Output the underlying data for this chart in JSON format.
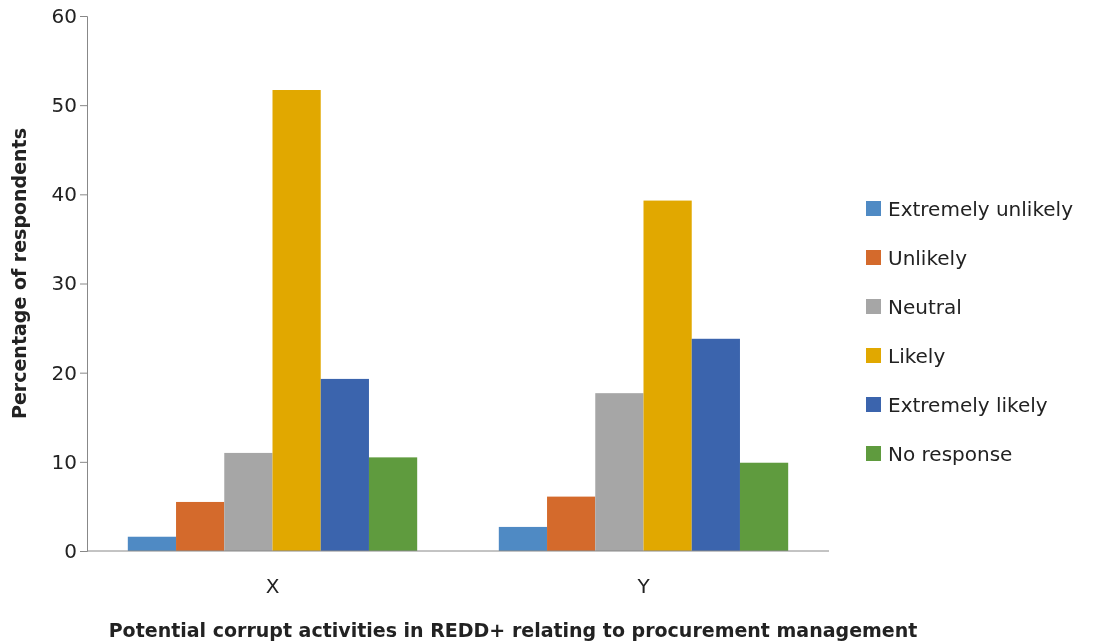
{
  "chart_data": {
    "type": "bar",
    "xlabel": "Potential corrupt activities in REDD+ relating to procurement management",
    "ylabel": "Percentage of respondents",
    "categories": [
      "X",
      "Y"
    ],
    "series": [
      {
        "name": "Extremely unlikely",
        "color": "#4f8ac4",
        "values": [
          1.6,
          2.7
        ]
      },
      {
        "name": "Unlikely",
        "color": "#d46a2c",
        "values": [
          5.5,
          6.1
        ]
      },
      {
        "name": "Neutral",
        "color": "#a6a6a6",
        "values": [
          11.0,
          17.7
        ]
      },
      {
        "name": "Likely",
        "color": "#e1a800",
        "values": [
          51.7,
          39.3
        ]
      },
      {
        "name": "Extremely likely",
        "color": "#3b64ad",
        "values": [
          19.3,
          23.8
        ]
      },
      {
        "name": "No response",
        "color": "#5f9b3e",
        "values": [
          10.5,
          9.9
        ]
      }
    ],
    "ylim": [
      0,
      60
    ],
    "yticks": [
      0,
      10,
      20,
      30,
      40,
      50,
      60
    ],
    "grid": false,
    "legend": "right"
  }
}
